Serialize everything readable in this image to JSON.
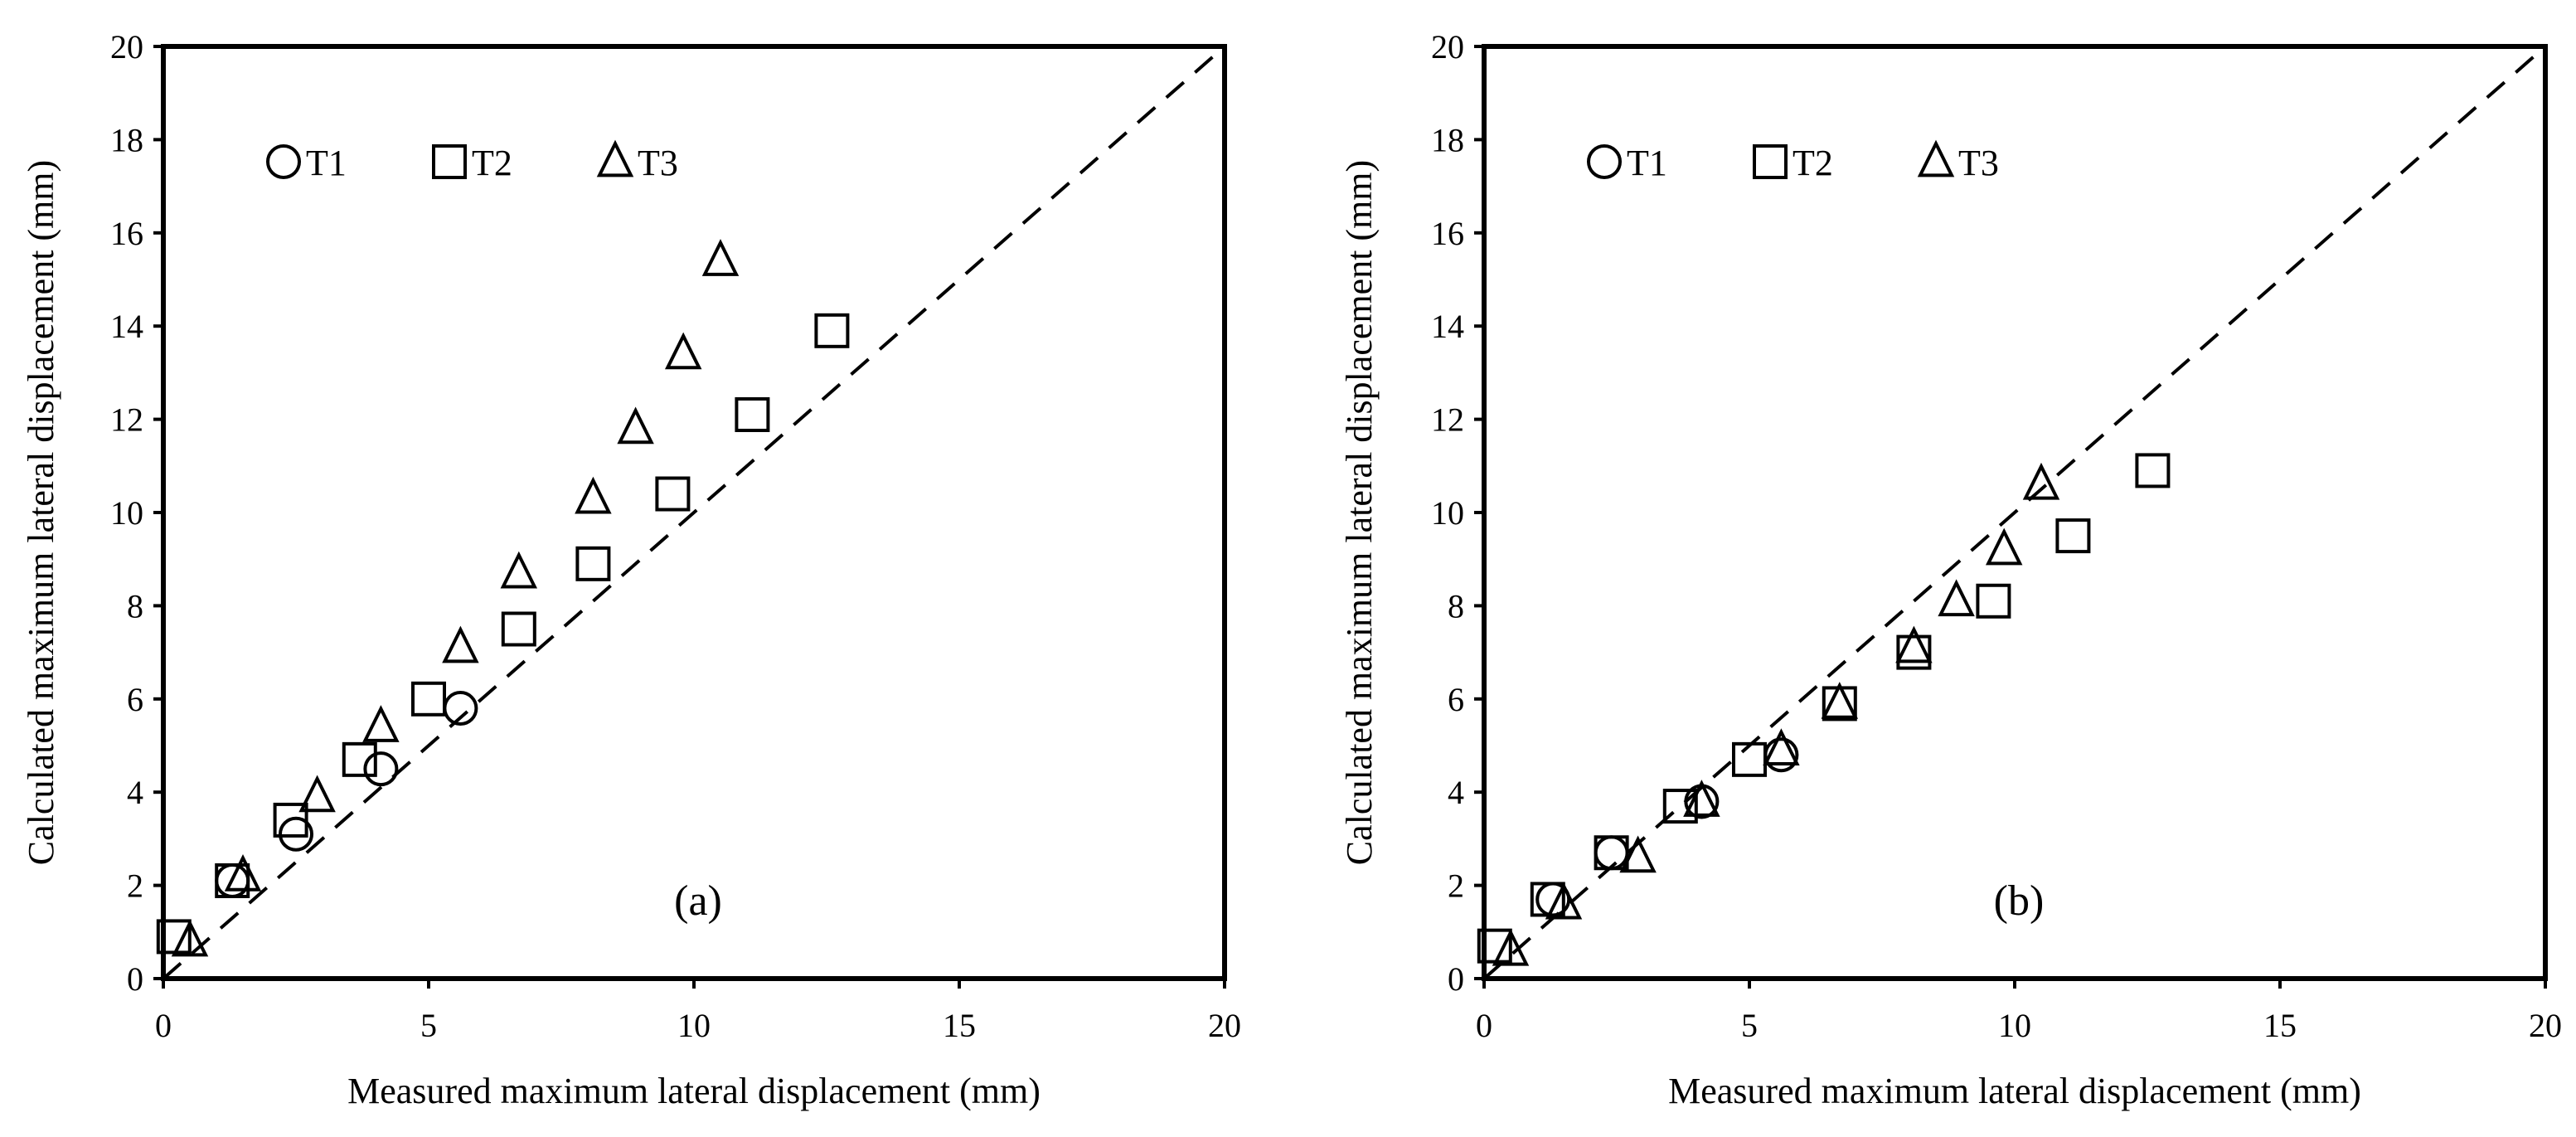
{
  "chart_data": [
    {
      "type": "scatter",
      "panel_label": "(a)",
      "xlabel": "Measured  maximum lateral displacement  (mm)",
      "ylabel": "Calculated maximum lateral displacement (mm)",
      "xlim": [
        0,
        20
      ],
      "ylim": [
        0,
        20
      ],
      "xticks": [
        "0",
        "5",
        "10",
        "15",
        "20"
      ],
      "yticks": [
        "0",
        "2",
        "4",
        "6",
        "8",
        "10",
        "12",
        "14",
        "16",
        "18",
        "20"
      ],
      "reference_line": "y = x (dashed)",
      "legend_position": "top-left",
      "series": [
        {
          "name": "T1",
          "marker": "circle",
          "x": [
            1.3,
            2.5,
            4.1,
            5.6
          ],
          "y": [
            2.1,
            3.1,
            4.5,
            5.8
          ]
        },
        {
          "name": "T2",
          "marker": "square",
          "x": [
            0.2,
            1.3,
            2.4,
            3.7,
            5.0,
            6.7,
            8.1,
            9.6,
            11.1,
            12.6
          ],
          "y": [
            0.9,
            2.1,
            3.4,
            4.7,
            6.0,
            7.5,
            8.9,
            10.4,
            12.1,
            13.9
          ]
        },
        {
          "name": "T3",
          "marker": "triangle",
          "x": [
            0.5,
            1.5,
            2.9,
            4.1,
            5.6,
            6.7,
            8.1,
            8.9,
            9.8,
            10.5
          ],
          "y": [
            0.8,
            2.2,
            3.9,
            5.4,
            7.1,
            8.7,
            10.3,
            11.8,
            13.4,
            15.4
          ]
        }
      ]
    },
    {
      "type": "scatter",
      "panel_label": "(b)",
      "xlabel": "Measured  maximum lateral displacement  (mm)",
      "ylabel": "Calculated maximum lateral displacement (mm)",
      "xlim": [
        0,
        20
      ],
      "ylim": [
        0,
        20
      ],
      "xticks": [
        "0",
        "5",
        "10",
        "15",
        "20"
      ],
      "yticks": [
        "0",
        "2",
        "4",
        "6",
        "8",
        "10",
        "12",
        "14",
        "16",
        "18",
        "20"
      ],
      "reference_line": "y = x (dashed)",
      "legend_position": "top-left",
      "series": [
        {
          "name": "T1",
          "marker": "circle",
          "x": [
            1.3,
            2.4,
            4.1,
            5.6
          ],
          "y": [
            1.7,
            2.7,
            3.8,
            4.8
          ]
        },
        {
          "name": "T2",
          "marker": "square",
          "x": [
            0.2,
            1.2,
            2.4,
            3.7,
            5.0,
            6.7,
            8.1,
            9.6,
            11.1,
            12.6
          ],
          "y": [
            0.7,
            1.7,
            2.7,
            3.7,
            4.7,
            5.9,
            7.0,
            8.1,
            9.5,
            10.9
          ]
        },
        {
          "name": "T3",
          "marker": "triangle",
          "x": [
            0.5,
            1.5,
            2.9,
            4.1,
            5.6,
            6.7,
            8.1,
            8.9,
            9.8,
            10.5
          ],
          "y": [
            0.6,
            1.6,
            2.6,
            3.8,
            4.9,
            5.9,
            7.1,
            8.1,
            9.2,
            10.6
          ]
        }
      ]
    }
  ]
}
